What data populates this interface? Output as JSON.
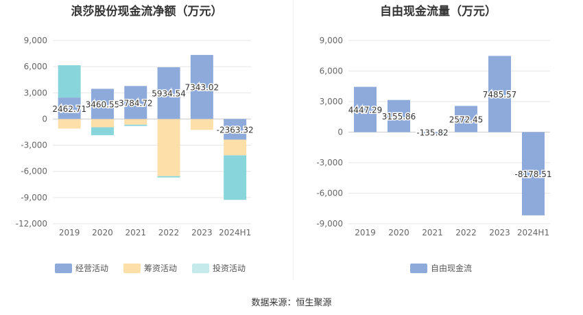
{
  "source_text": "数据来源：恒生聚源",
  "chart_data": [
    {
      "type": "bar",
      "stacked": true,
      "title": "浪莎股份现金流净额（万元）",
      "categories": [
        "2019",
        "2020",
        "2021",
        "2022",
        "2023",
        "2024H1"
      ],
      "ylim": [
        -12000,
        9000
      ],
      "yticks": [
        9000,
        6000,
        3000,
        0,
        -3000,
        -6000,
        -9000,
        -12000
      ],
      "ytick_labels": [
        "9,000",
        "6,000",
        "3,000",
        "0",
        "-3,000",
        "-6,000",
        "-9,000",
        "-12,000"
      ],
      "series": [
        {
          "name": "经营活动",
          "color": "#8eaadb",
          "values": [
            2462.71,
            3460.55,
            3784.72,
            5934.54,
            7343.02,
            -2363.32
          ]
        },
        {
          "name": "筹资活动",
          "color": "#fddfaa",
          "values": [
            -1100,
            -950,
            -650,
            -6550,
            -1250,
            -1800
          ]
        },
        {
          "name": "投资活动",
          "color": "#88d6db",
          "values": [
            3700,
            -900,
            -150,
            -150,
            0,
            -5100
          ]
        }
      ],
      "data_labels": [
        "2462.71",
        "3460.55",
        "3784.72",
        "5934.54",
        "7343.02",
        "-2363.32"
      ],
      "legend": [
        "经营活动",
        "筹资活动",
        "投资活动"
      ]
    },
    {
      "type": "bar",
      "title": "自由现金流量（万元）",
      "categories": [
        "2019",
        "2020",
        "2021",
        "2022",
        "2023",
        "2024H1"
      ],
      "ylim": [
        -9000,
        9000
      ],
      "yticks": [
        9000,
        6000,
        3000,
        0,
        -3000,
        -6000,
        -9000
      ],
      "ytick_labels": [
        "9,000",
        "6,000",
        "3,000",
        "0",
        "-3,000",
        "-6,000",
        "-9,000"
      ],
      "series": [
        {
          "name": "自由现金流",
          "color": "#8eaadb",
          "values": [
            4447.29,
            3155.86,
            -135.82,
            2572.45,
            7485.57,
            -8178.51
          ]
        }
      ],
      "data_labels": [
        "4447.29",
        "3155.86",
        "-135.82",
        "2572.45",
        "7485.57",
        "-8178.51"
      ],
      "legend": [
        "自由现金流"
      ]
    }
  ]
}
